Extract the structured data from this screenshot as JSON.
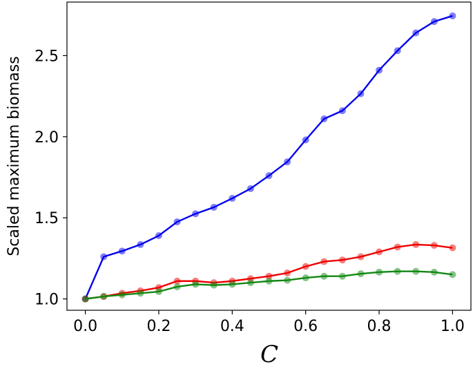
{
  "chart_data": {
    "type": "line",
    "title": "",
    "xlabel": "C",
    "ylabel": "Scaled maximum biomass",
    "xlim": [
      -0.05,
      1.05
    ],
    "ylim": [
      0.93,
      2.83
    ],
    "xticks": [
      "0.0",
      "0.2",
      "0.4",
      "0.6",
      "0.8",
      "1.0"
    ],
    "xtick_values": [
      0.0,
      0.2,
      0.4,
      0.6,
      0.8,
      1.0
    ],
    "yticks": [
      "1.0",
      "1.5",
      "2.0",
      "2.5"
    ],
    "ytick_values": [
      1.0,
      1.5,
      2.0,
      2.5
    ],
    "grid": false,
    "legend": "none",
    "x": [
      0.0,
      0.05,
      0.1,
      0.15,
      0.2,
      0.25,
      0.3,
      0.35,
      0.4,
      0.45,
      0.5,
      0.55,
      0.6,
      0.65,
      0.7,
      0.75,
      0.8,
      0.85,
      0.9,
      0.95,
      1.0
    ],
    "series": [
      {
        "color": "#0000ee",
        "values": [
          1.0,
          1.26,
          1.295,
          1.335,
          1.39,
          1.475,
          1.525,
          1.565,
          1.62,
          1.68,
          1.76,
          1.845,
          1.98,
          2.11,
          2.16,
          2.265,
          2.41,
          2.53,
          2.64,
          2.71,
          2.745
        ]
      },
      {
        "color": "#ee0000",
        "values": [
          1.0,
          1.015,
          1.035,
          1.05,
          1.07,
          1.11,
          1.11,
          1.1,
          1.11,
          1.125,
          1.14,
          1.16,
          1.2,
          1.23,
          1.24,
          1.26,
          1.29,
          1.32,
          1.335,
          1.33,
          1.315
        ]
      },
      {
        "color": "#118811",
        "values": [
          1.0,
          1.015,
          1.025,
          1.035,
          1.045,
          1.075,
          1.09,
          1.085,
          1.09,
          1.1,
          1.11,
          1.115,
          1.13,
          1.14,
          1.14,
          1.155,
          1.165,
          1.17,
          1.17,
          1.165,
          1.15
        ]
      }
    ]
  }
}
